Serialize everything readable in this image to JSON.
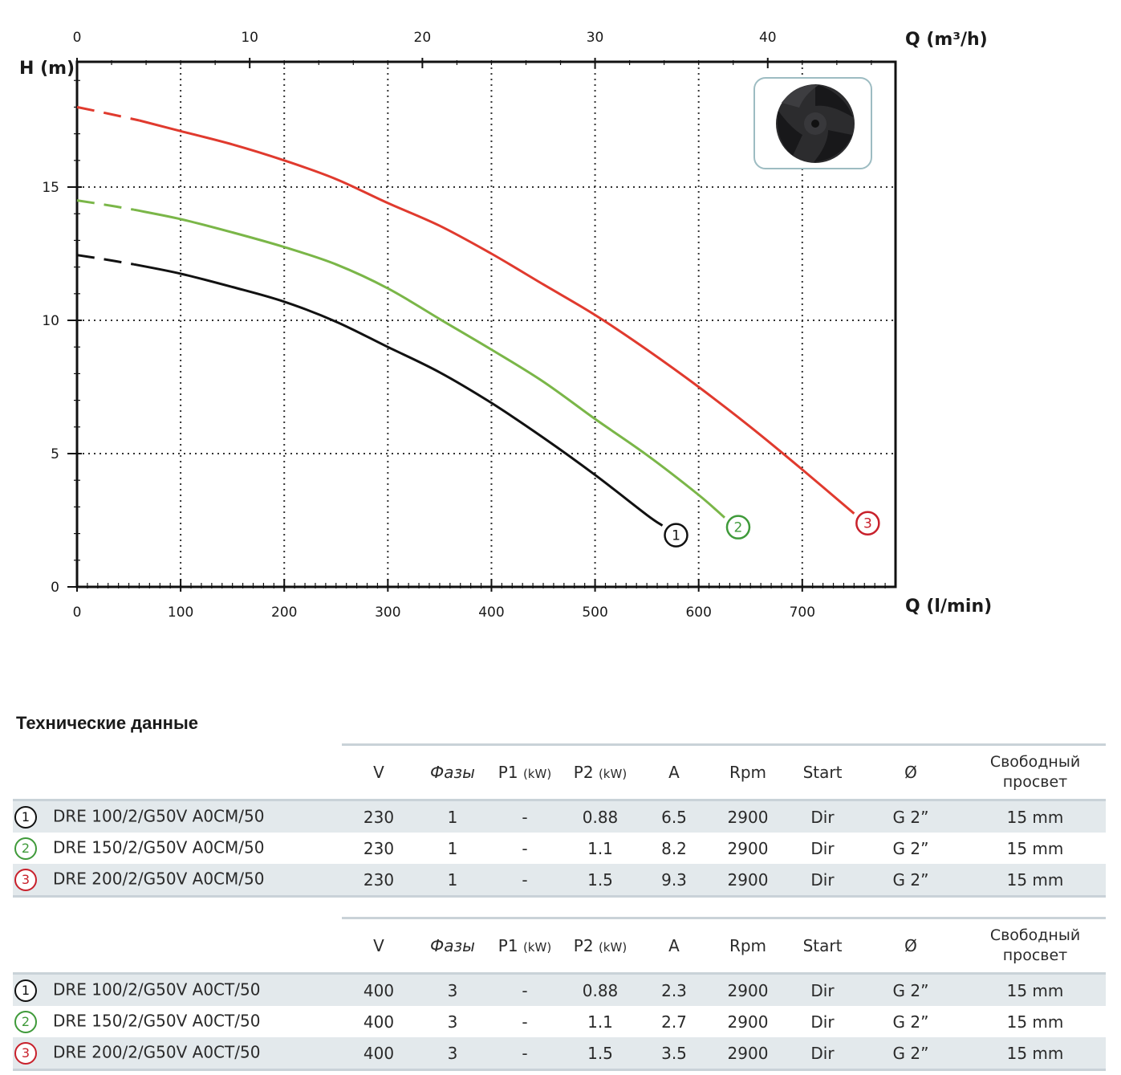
{
  "chart_data": {
    "type": "line",
    "xlabel": "Q (l/min)",
    "x2label": "Q (m³/h)",
    "ylabel": "H (m)",
    "xlim": [
      0,
      790
    ],
    "ylim": [
      0,
      19.7
    ],
    "x_ticks": [
      0,
      100,
      200,
      300,
      400,
      500,
      600,
      700
    ],
    "x2_ticks": [
      0,
      10,
      20,
      30,
      40
    ],
    "y_ticks": [
      0,
      5,
      10,
      15
    ],
    "grid": true,
    "series": [
      {
        "name": "1",
        "color": "#111111",
        "x": [
          0,
          25,
          55,
          100,
          150,
          200,
          250,
          300,
          350,
          400,
          450,
          500,
          550,
          565
        ],
        "y": [
          12.45,
          12.3,
          12.1,
          11.75,
          11.25,
          10.7,
          9.95,
          9.0,
          8.05,
          6.9,
          5.6,
          4.2,
          2.7,
          2.3
        ]
      },
      {
        "name": "2",
        "color": "#7ab648",
        "x": [
          0,
          25,
          55,
          100,
          150,
          200,
          250,
          300,
          350,
          400,
          450,
          500,
          550,
          600,
          625
        ],
        "y": [
          14.5,
          14.35,
          14.15,
          13.8,
          13.3,
          12.75,
          12.1,
          11.2,
          10.05,
          8.9,
          7.7,
          6.3,
          4.95,
          3.45,
          2.6
        ]
      },
      {
        "name": "3",
        "color": "#e03a2e",
        "x": [
          0,
          25,
          60,
          100,
          150,
          200,
          250,
          300,
          350,
          400,
          450,
          500,
          550,
          600,
          650,
          700,
          750
        ],
        "y": [
          18.0,
          17.8,
          17.5,
          17.1,
          16.6,
          16.0,
          15.3,
          14.4,
          13.55,
          12.5,
          11.35,
          10.2,
          8.9,
          7.5,
          6.0,
          4.4,
          2.75
        ]
      }
    ]
  },
  "spec_title": "Технические данные",
  "table_headers": [
    "V",
    "Фазы",
    "P1",
    "P2",
    "A",
    "Rpm",
    "Start",
    "Ø",
    "Свободный",
    "просвет"
  ],
  "header_unit": "(kW)",
  "tables": [
    {
      "rows": [
        {
          "badge": "1",
          "color": "#111111",
          "model": "DRE 100/2/G50V A0CM/50",
          "v": "230",
          "phases": "1",
          "p1": "-",
          "p2": "0.88",
          "a": "6.5",
          "rpm": "2900",
          "start": "Dir",
          "dia": "G 2”",
          "clearance": "15 mm"
        },
        {
          "badge": "2",
          "color": "#3f9a3a",
          "model": "DRE 150/2/G50V A0CM/50",
          "v": "230",
          "phases": "1",
          "p1": "-",
          "p2": "1.1",
          "a": "8.2",
          "rpm": "2900",
          "start": "Dir",
          "dia": "G 2”",
          "clearance": "15 mm"
        },
        {
          "badge": "3",
          "color": "#c8202b",
          "model": "DRE 200/2/G50V A0CM/50",
          "v": "230",
          "phases": "1",
          "p1": "-",
          "p2": "1.5",
          "a": "9.3",
          "rpm": "2900",
          "start": "Dir",
          "dia": "G 2”",
          "clearance": "15 mm"
        }
      ]
    },
    {
      "rows": [
        {
          "badge": "1",
          "color": "#111111",
          "model": "DRE 100/2/G50V A0CT/50",
          "v": "400",
          "phases": "3",
          "p1": "-",
          "p2": "0.88",
          "a": "2.3",
          "rpm": "2900",
          "start": "Dir",
          "dia": "G 2”",
          "clearance": "15 mm"
        },
        {
          "badge": "2",
          "color": "#3f9a3a",
          "model": "DRE 150/2/G50V A0CT/50",
          "v": "400",
          "phases": "3",
          "p1": "-",
          "p2": "1.1",
          "a": "2.7",
          "rpm": "2900",
          "start": "Dir",
          "dia": "G 2”",
          "clearance": "15 mm"
        },
        {
          "badge": "3",
          "color": "#c8202b",
          "model": "DRE 200/2/G50V A0CT/50",
          "v": "400",
          "phases": "3",
          "p1": "-",
          "p2": "1.5",
          "a": "3.5",
          "rpm": "2900",
          "start": "Dir",
          "dia": "G 2”",
          "clearance": "15 mm"
        }
      ]
    }
  ]
}
